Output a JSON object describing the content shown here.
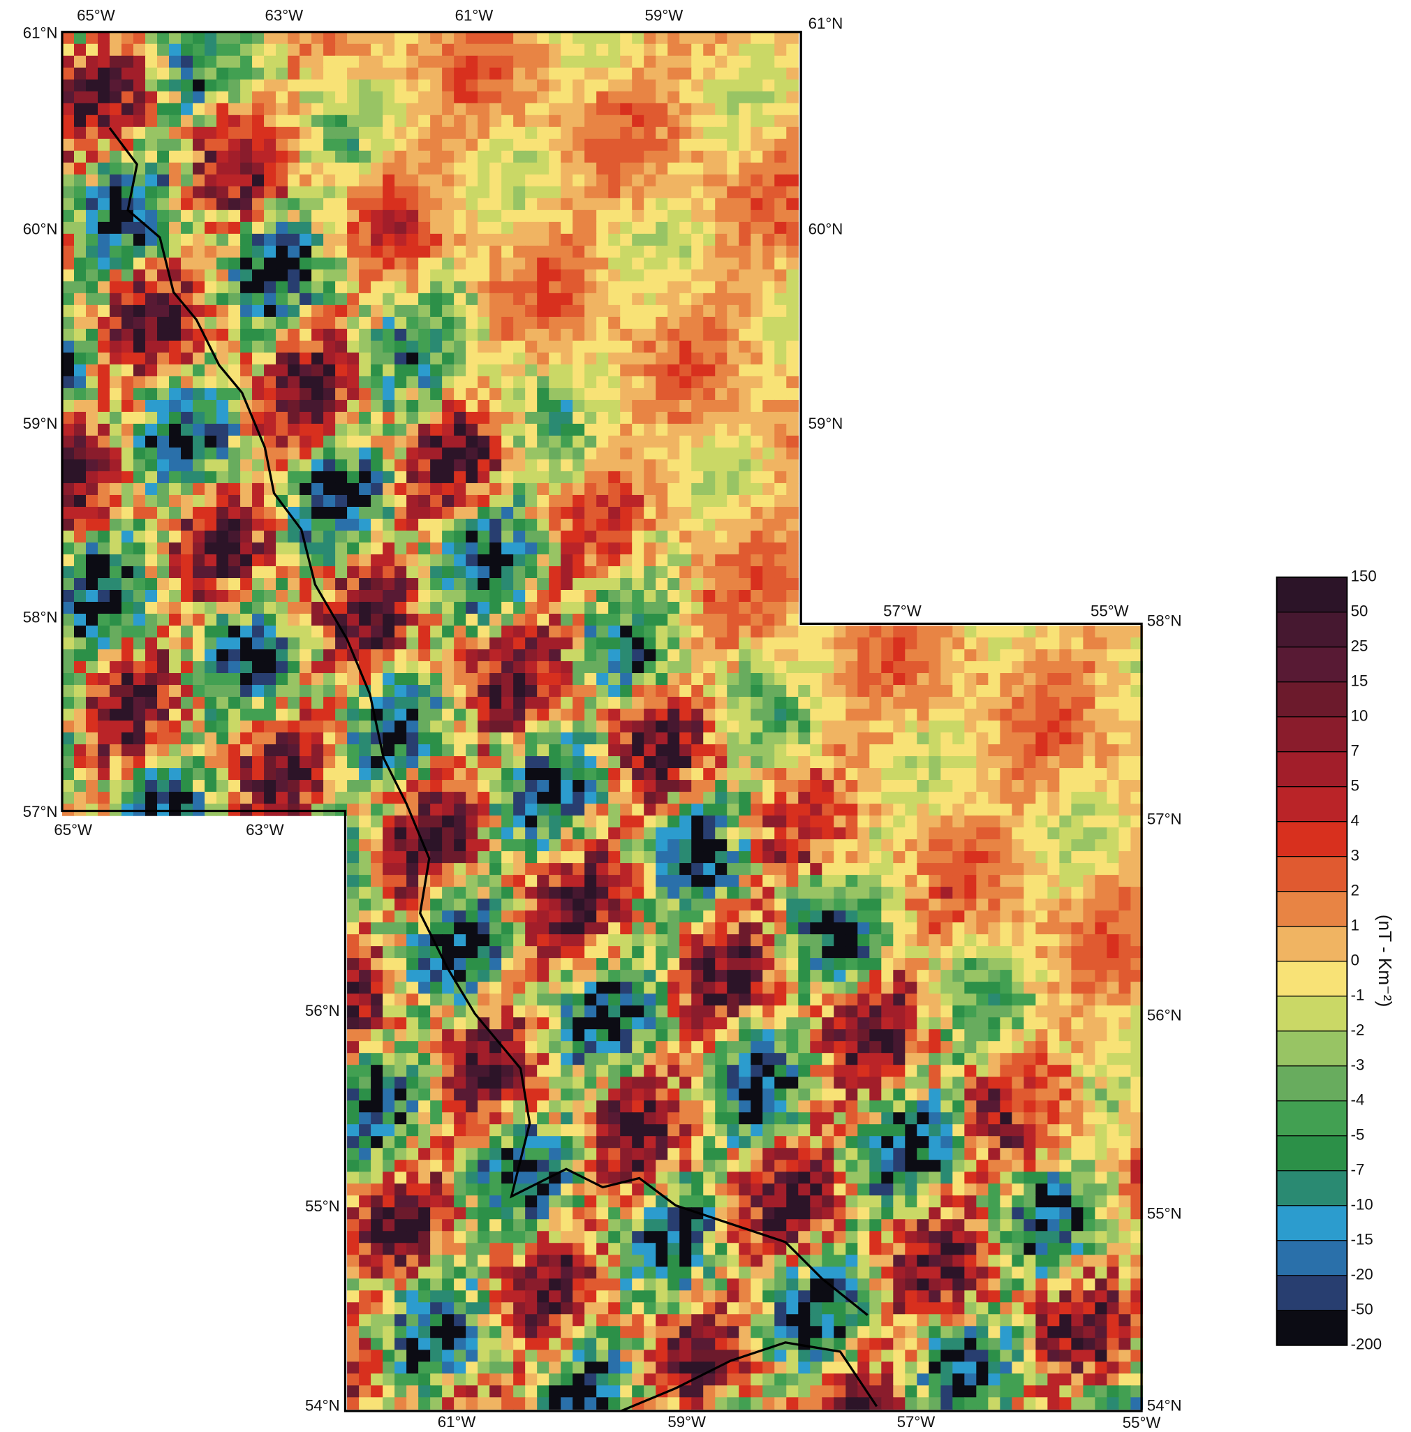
{
  "map": {
    "labels": [
      "65°W",
      "63°W",
      "61°W",
      "59°W",
      "61°N",
      "61°N",
      "60°N",
      "60°N",
      "59°N",
      "59°N",
      "58°N",
      "57°N",
      "65°W",
      "63°W",
      "57°W",
      "55°W",
      "58°N",
      "57°N",
      "56°N",
      "55°N",
      "54°N",
      "56°N",
      "55°N",
      "54°N",
      "61°W",
      "59°W",
      "57°W",
      "55°W"
    ]
  },
  "colorbar": {
    "label": "(nT - Km⁻²)",
    "ticks": [
      150,
      50,
      25,
      15,
      10,
      7,
      5,
      4,
      3,
      2,
      1,
      0,
      -1,
      -2,
      -3,
      -4,
      -5,
      -7,
      -10,
      -15,
      -20,
      -50,
      -200
    ],
    "colors": [
      "#2c1428",
      "#461830",
      "#581a34",
      "#6c1a2c",
      "#8a1c2c",
      "#a21e2a",
      "#ba2428",
      "#d8301e",
      "#e05a30",
      "#e88444",
      "#f0b462",
      "#f8e276",
      "#cad866",
      "#98c464",
      "#68ac5e",
      "#42a052",
      "#2c9048",
      "#2a8a72",
      "#2c9cce",
      "#2a70aa",
      "#283e70",
      "#0c0c14"
    ]
  }
}
